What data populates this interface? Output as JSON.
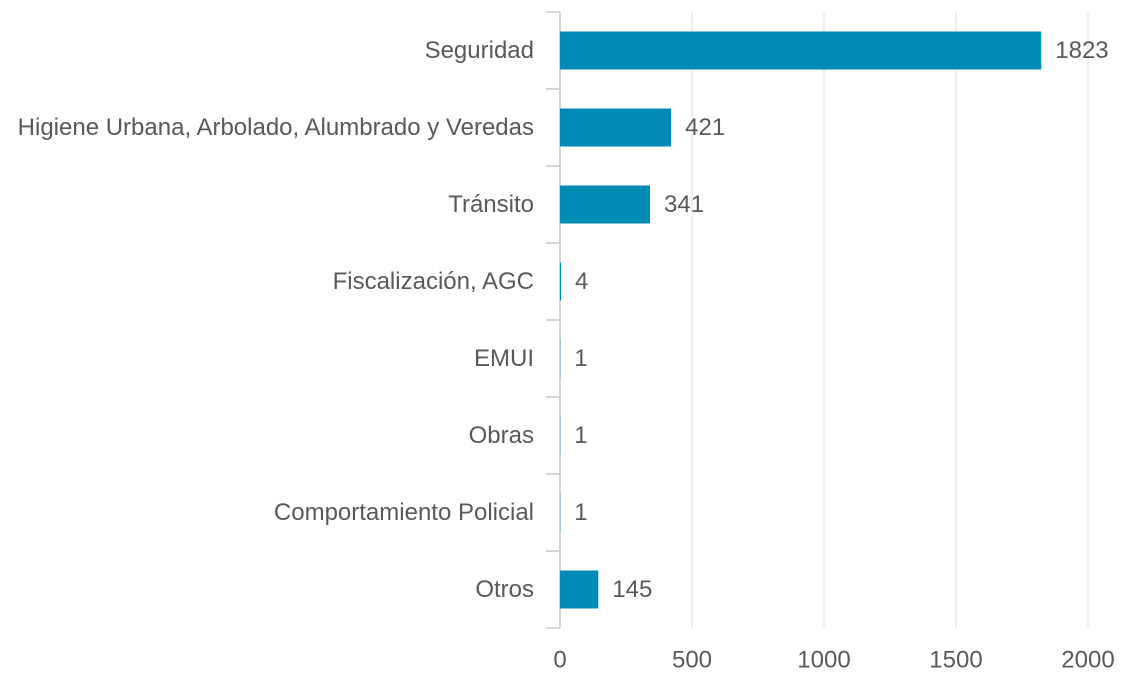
{
  "chart_data": {
    "type": "bar",
    "orientation": "horizontal",
    "categories": [
      "Seguridad",
      "Higiene Urbana, Arbolado, Alumbrado y Veredas",
      "Tránsito",
      "Fiscalización, AGC",
      "EMUI",
      "Obras",
      "Comportamiento Policial",
      "Otros"
    ],
    "values": [
      1823,
      421,
      341,
      4,
      1,
      1,
      1,
      145
    ],
    "color": "#008bb5",
    "xlim": [
      0,
      2000
    ],
    "xticks": [
      0,
      500,
      1000,
      1500,
      2000
    ],
    "grid": true
  }
}
